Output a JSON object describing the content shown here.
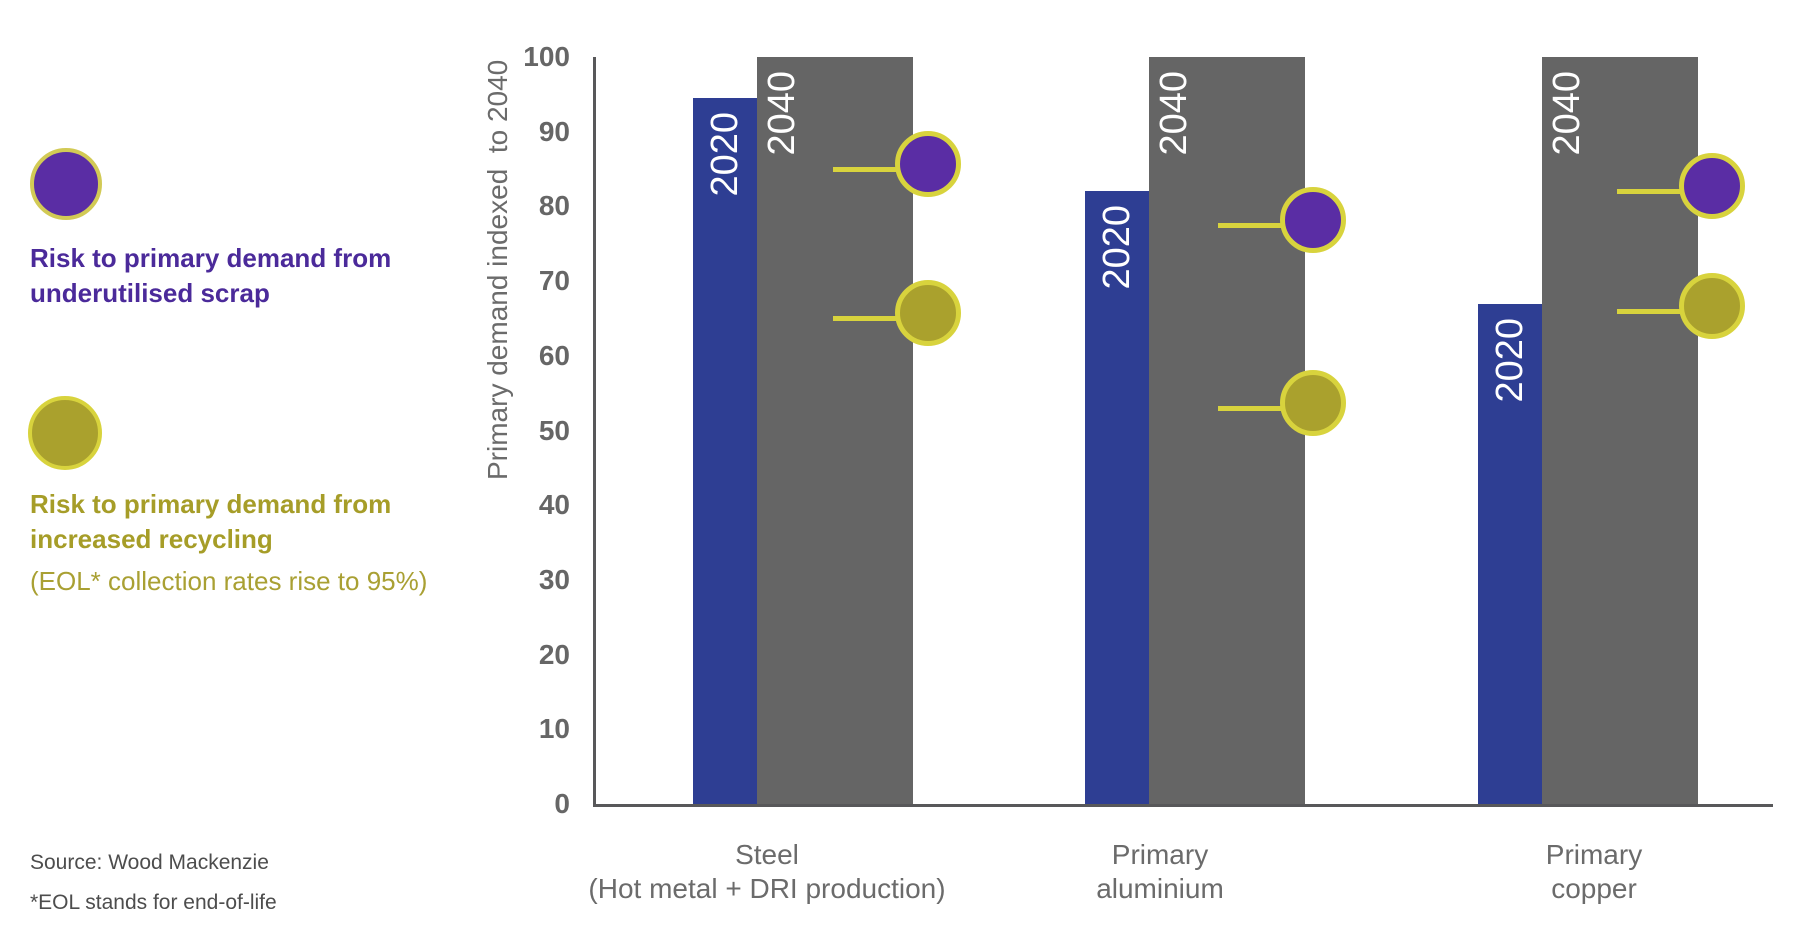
{
  "legend": {
    "scrap": {
      "swatch_color": "#5a2da4",
      "ring_color": "#d2ca55",
      "label_line1": "Risk to primary demand from",
      "label_line2": "underutilised scrap"
    },
    "recycling": {
      "swatch_color": "#aaa12d",
      "ring_color": "#d8d33d",
      "label_line1": "Risk to primary demand from",
      "label_line2": "increased recycling",
      "note": "(EOL* collection rates rise to 95%)"
    }
  },
  "footer": {
    "source": "Source: Wood Mackenzie",
    "footnote": "*EOL stands for end-of-life"
  },
  "chart_data": {
    "type": "bar",
    "title": "",
    "ylabel": "Primary demand indexed  to 2040",
    "ylim": [
      0,
      100
    ],
    "yticks": [
      0,
      10,
      20,
      30,
      40,
      50,
      60,
      70,
      80,
      90,
      100
    ],
    "grid": false,
    "legend_position": "left",
    "categories": [
      "Steel (Hot metal + DRI production)",
      "Primary aluminium",
      "Primary copper"
    ],
    "category_label_lines": [
      [
        "Steel",
        "(Hot metal + DRI production)"
      ],
      [
        "Primary",
        "aluminium"
      ],
      [
        "Primary",
        "copper"
      ]
    ],
    "series": [
      {
        "name": "2020",
        "type": "bar",
        "color": "#2e3e93",
        "label_color": "#ffffff",
        "values": [
          94.5,
          82,
          67
        ]
      },
      {
        "name": "2040",
        "type": "bar",
        "color": "#656565",
        "label_color": "#ffffff",
        "values": [
          100,
          100,
          100
        ]
      },
      {
        "name": "Risk to primary demand from underutilised scrap",
        "type": "lollipop",
        "color": "#5a2da4",
        "ring_color": "#d8d33d",
        "values": [
          85,
          77.5,
          82
        ]
      },
      {
        "name": "Risk to primary demand from increased recycling",
        "type": "lollipop",
        "color": "#aaa12d",
        "ring_color": "#d8d33d",
        "values": [
          65,
          53,
          66
        ]
      }
    ],
    "axis_color": "#58585a",
    "tick_label_color": "#666666",
    "category_label_color": "#6b6b6b"
  }
}
